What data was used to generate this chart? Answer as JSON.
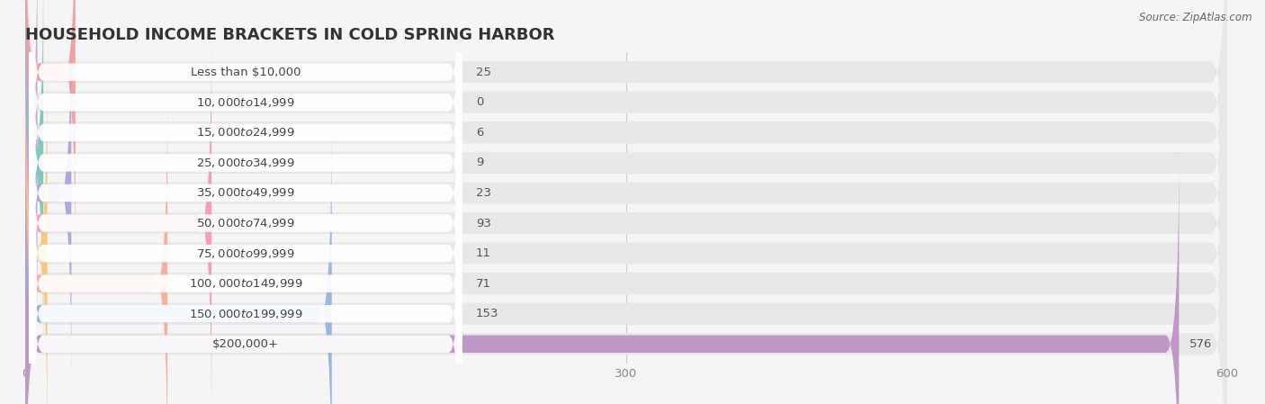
{
  "title": "HOUSEHOLD INCOME BRACKETS IN COLD SPRING HARBOR",
  "source": "Source: ZipAtlas.com",
  "categories": [
    "Less than $10,000",
    "$10,000 to $14,999",
    "$15,000 to $24,999",
    "$25,000 to $34,999",
    "$35,000 to $49,999",
    "$50,000 to $74,999",
    "$75,000 to $99,999",
    "$100,000 to $149,999",
    "$150,000 to $199,999",
    "$200,000+"
  ],
  "values": [
    25,
    0,
    6,
    9,
    23,
    93,
    11,
    71,
    153,
    576
  ],
  "bar_colors": [
    "#F4A0A0",
    "#A8C8E8",
    "#C8A8D8",
    "#80C8C0",
    "#B0A8D8",
    "#F4A0B8",
    "#F8C880",
    "#F4B0A0",
    "#98B8E0",
    "#C098C8"
  ],
  "background_color": "#f5f5f5",
  "bar_bg_color": "#e8e8e8",
  "label_bg_color": "#ffffff",
  "xlim": [
    0,
    600
  ],
  "xticks": [
    0,
    300,
    600
  ],
  "title_fontsize": 13,
  "label_fontsize": 9.5,
  "value_fontsize": 9.5,
  "value_color": "#555555",
  "label_text_color": "#444444",
  "title_color": "#333333",
  "source_color": "#666666"
}
